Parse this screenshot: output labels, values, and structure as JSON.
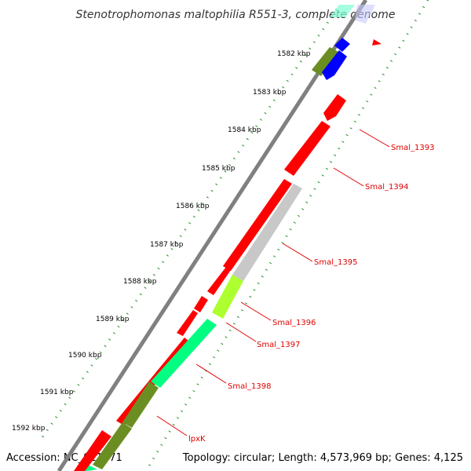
{
  "header": {
    "title": "Stenotrophomonas maltophilia R551-3, complete genome"
  },
  "footer": {
    "accession": "Accession: NC_011071",
    "summary": "Topology: circular; Length: 4,573,969 bp; Genes: 4,125"
  },
  "kbp_ticks": [
    "1582 kbp",
    "1583 kbp",
    "1584 kbp",
    "1585 kbp",
    "1586 kbp",
    "1587 kbp",
    "1588 kbp",
    "1589 kbp",
    "1590 kbp",
    "1591 kbp",
    "1592 kbp"
  ],
  "gene_labels": [
    "Smal_1393",
    "Smal_1394",
    "Smal_1395",
    "Smal_1396",
    "Smal_1397",
    "Smal_1398",
    "lpxK"
  ],
  "colors": {
    "backbone": "#808080",
    "cds_red": "#ff0000",
    "cds_olive": "#6b8e23",
    "cds_blue": "#0000ff",
    "cds_grey": "#c8c8c8",
    "cds_yellowgreen": "#adff2f",
    "cds_springgreen": "#00ff80",
    "dots_green": "#228b22",
    "label_red": "#e00000"
  }
}
